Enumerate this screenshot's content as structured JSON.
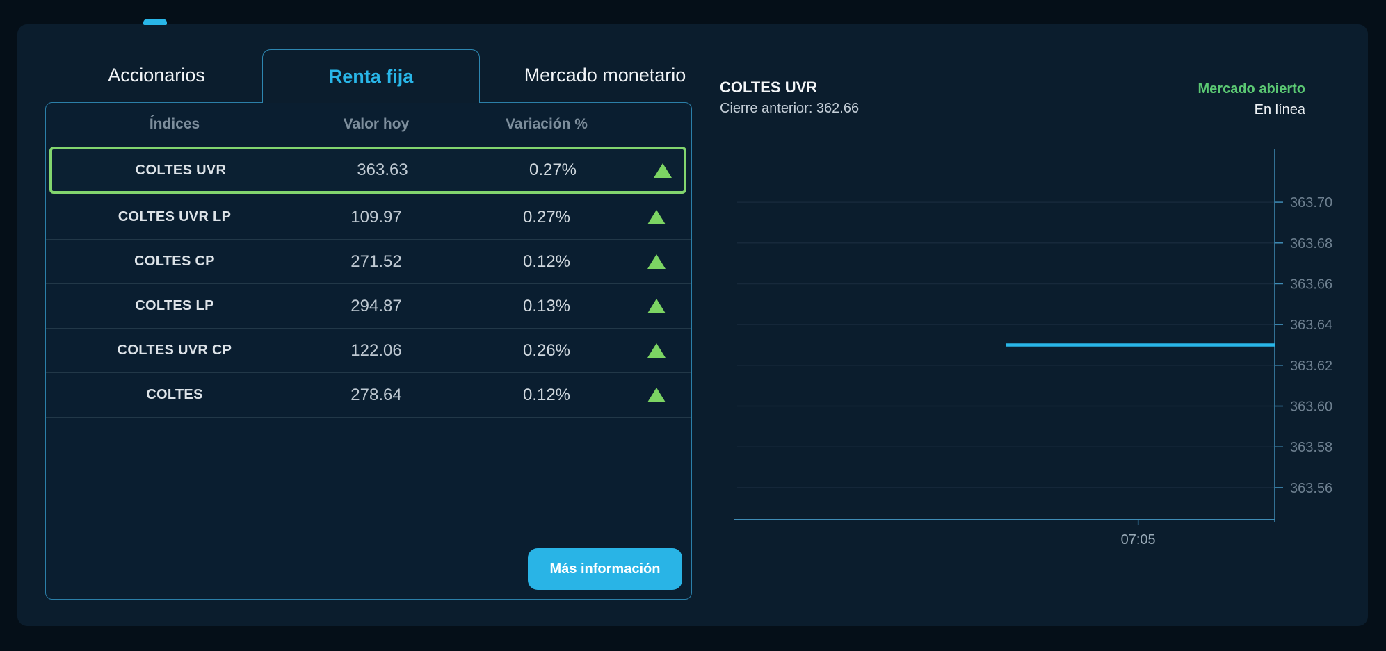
{
  "tabs": {
    "accionarios": "Accionarios",
    "renta_fija": "Renta fija",
    "mercado_monetario": "Mercado monetario",
    "active": "Renta fija"
  },
  "table": {
    "columns": [
      "Índices",
      "Valor hoy",
      "Variación %"
    ],
    "rows": [
      {
        "name": "COLTES UVR",
        "value": "363.63",
        "change": "0.27%",
        "direction": "up",
        "selected": true
      },
      {
        "name": "COLTES UVR LP",
        "value": "109.97",
        "change": "0.27%",
        "direction": "up",
        "selected": false
      },
      {
        "name": "COLTES CP",
        "value": "271.52",
        "change": "0.12%",
        "direction": "up",
        "selected": false
      },
      {
        "name": "COLTES LP",
        "value": "294.87",
        "change": "0.13%",
        "direction": "up",
        "selected": false
      },
      {
        "name": "COLTES UVR CP",
        "value": "122.06",
        "change": "0.26%",
        "direction": "up",
        "selected": false
      },
      {
        "name": "COLTES",
        "value": "278.64",
        "change": "0.12%",
        "direction": "up",
        "selected": false
      }
    ],
    "more_info_label": "Más información"
  },
  "quote": {
    "title": "COLTES UVR",
    "previous_close": "Cierre anterior: 362.66",
    "market_status": "Mercado abierto",
    "connection_status": "En línea"
  },
  "chart_data": {
    "type": "line",
    "title": "COLTES UVR",
    "previous_close": 362.66,
    "current_value": 363.63,
    "y_ticks": [
      363.7,
      363.68,
      363.66,
      363.64,
      363.62,
      363.6,
      363.58,
      363.56
    ],
    "y_range": [
      363.546,
      363.714
    ],
    "x_ticks": [
      {
        "pos": 0.746,
        "label": "07:05"
      }
    ],
    "series": [
      {
        "name": "COLTES UVR",
        "points": [
          {
            "pos": 0.5,
            "y": 363.63
          },
          {
            "pos": 1.0,
            "y": 363.63
          }
        ]
      }
    ],
    "grid": "horizontal",
    "axis_side": "right",
    "legend": "none"
  },
  "colors": {
    "accent_cyan": "#29b6e8",
    "positive_green": "#7cd463",
    "market_open_green": "#5bc873",
    "selected_border": "#82d56e",
    "card_border": "#2b7fa8",
    "grid_line": "#17293b",
    "axis_line": "#3f8cb5",
    "y_tick_text": "#6e8090",
    "x_tick_text": "#9aabb8"
  }
}
